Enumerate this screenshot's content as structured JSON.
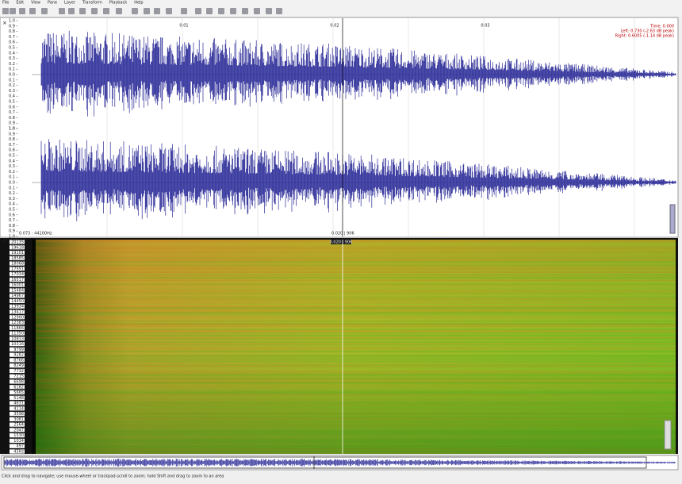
{
  "menu": [
    "File",
    "Edit",
    "View",
    "Pane",
    "Layer",
    "Transform",
    "Playback",
    "Help"
  ],
  "waveform": {
    "time_ticks": [
      "0.01",
      "0.02",
      "0.03"
    ],
    "amplitude_ticks": [
      "1.0",
      "0.9",
      "0.8",
      "0.7",
      "0.6",
      "0.5",
      "0.4",
      "0.3",
      "0.2",
      "0.1",
      "0.0",
      "0.1",
      "0.2",
      "0.3",
      "0.4",
      "0.5",
      "0.6",
      "0.7",
      "0.8",
      "0.9",
      "1.0"
    ],
    "readout": [
      "Time: 0.000",
      "Left: 0.730 (-2.63 dB peak)",
      "Right: 0.6005 (-1.14 dB peak)"
    ],
    "bottom_label": "0.073 : 44100Hz",
    "cursor_label": "0.020 | 906"
  },
  "spectrogram": {
    "cursor_label": "0.020 | 906",
    "frequency_labels": [
      "20135",
      "19618",
      "19101",
      "18585",
      "18068",
      "17551",
      "17034",
      "16517",
      "16001",
      "15484",
      "14967",
      "14450",
      "13934",
      "13417",
      "12900",
      "12383",
      "11866",
      "11350",
      "10833",
      "10316",
      "9799",
      "9282",
      "8766",
      "8249",
      "7732",
      "7215",
      "6698",
      "6182",
      "5665",
      "5148",
      "4631",
      "4114",
      "3598",
      "3081",
      "2564",
      "2047",
      "1530",
      "1014",
      "497",
      "43Hz"
    ]
  },
  "status": "Click and drag to navigate; use mouse-wheel or trackpad-scroll to zoom; hold Shift and drag to zoom to an area"
}
